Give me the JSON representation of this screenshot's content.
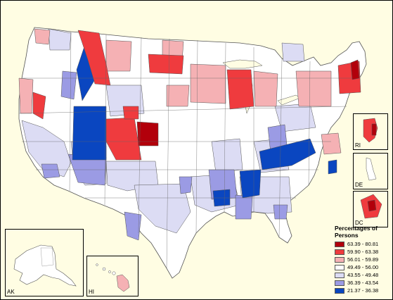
{
  "legend": {
    "title_line1": "Percentages of",
    "title_line2": "Persons",
    "classes": [
      {
        "label": "63.39 - 80.81",
        "color": "#b2000b"
      },
      {
        "label": "59.90 - 63.38",
        "color": "#ef3b3e"
      },
      {
        "label": "56.01 - 59.89",
        "color": "#f5b1b4"
      },
      {
        "label": "49.49 - 56.00",
        "color": "#ffffff"
      },
      {
        "label": "43.55 - 49.48",
        "color": "#dcdcf4"
      },
      {
        "label": "36.39 - 43.54",
        "color": "#9b9be4"
      },
      {
        "label": "21.37 - 36.38",
        "color": "#0a46c0"
      }
    ]
  },
  "insets": {
    "ri": "RI",
    "de": "DE",
    "dc": "DC",
    "ak": "AK",
    "hi": "HI"
  },
  "colors": {
    "background": "#fffde3",
    "border": "#555555"
  }
}
